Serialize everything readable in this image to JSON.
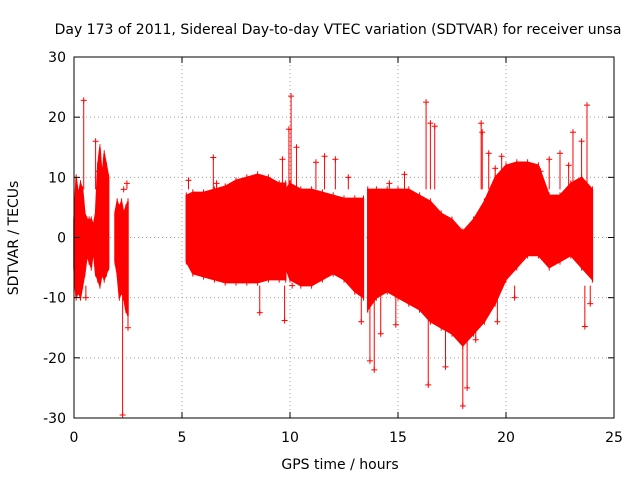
{
  "chart_data": {
    "type": "scatter",
    "title": "Day 173 of 2011, Sidereal Day-to-day VTEC variation (SDTVAR) for receiver unsa",
    "xlabel": "GPS time / hours",
    "ylabel": "SDTVAR / TECUs",
    "xlim": [
      0,
      25
    ],
    "ylim": [
      -30,
      30
    ],
    "xticks": [
      0,
      5,
      10,
      15,
      20,
      25
    ],
    "xtick_labels": [
      "0",
      "5",
      "10",
      "15",
      "20",
      "25"
    ],
    "yticks": [
      -30,
      -20,
      -10,
      0,
      10,
      20,
      30
    ],
    "ytick_labels": [
      "-30",
      "-20",
      "-10",
      "0",
      "10",
      "20",
      "30"
    ],
    "grid": true,
    "series_color": "#ff0000",
    "marker": "plus",
    "bands": [
      {
        "x": [
          0.0,
          0.05,
          0.1,
          0.2,
          0.3,
          0.4,
          0.5,
          0.6,
          0.7,
          0.8,
          0.9,
          1.0,
          1.1,
          1.2,
          1.3,
          1.4,
          1.5,
          1.6
        ],
        "ymin": [
          -5,
          -8,
          -10,
          -9,
          -10,
          -8,
          -6,
          -3,
          -4,
          -5,
          -2,
          -6,
          -7,
          -8,
          -6,
          -7,
          -6,
          -5
        ],
        "ymax": [
          3,
          6,
          10,
          7,
          9,
          8,
          4,
          3,
          3,
          3,
          2,
          4,
          12,
          15,
          10,
          14,
          12,
          10
        ]
      },
      {
        "x": [
          1.9,
          2.0,
          2.1,
          2.2,
          2.3,
          2.4,
          2.5
        ],
        "ymin": [
          -4,
          -6,
          -10,
          -9,
          -10,
          -12,
          -13
        ],
        "ymax": [
          4,
          6,
          5,
          6,
          4,
          5,
          6
        ]
      },
      {
        "x": [
          5.2,
          5.5,
          6.0,
          6.5,
          7.0,
          7.5,
          8.0,
          8.5,
          9.0,
          9.5,
          9.8
        ],
        "ymin": [
          -4,
          -6,
          -6.5,
          -7,
          -7.5,
          -7.5,
          -7.5,
          -7.5,
          -7,
          -7,
          -7
        ],
        "ymax": [
          7,
          7.5,
          7.5,
          8,
          8.5,
          9.5,
          10,
          10.5,
          10,
          9,
          9
        ]
      },
      {
        "x": [
          9.8,
          10.0,
          10.5,
          11.0,
          11.5,
          12.0,
          12.5,
          13.0,
          13.4
        ],
        "ymin": [
          -5,
          -7,
          -8,
          -8,
          -7,
          -6,
          -7,
          -9,
          -10
        ],
        "ymax": [
          8,
          9,
          8,
          8,
          7.5,
          7,
          6.5,
          6.5,
          6.5
        ]
      },
      {
        "x": [
          13.6,
          14.0,
          14.5,
          15.0,
          15.5,
          16.0,
          16.5,
          17.0,
          17.5,
          18.0,
          18.5,
          19.0,
          19.5,
          20.0,
          20.5,
          21.0,
          21.5,
          22.0,
          22.5,
          23.0,
          23.5,
          24.0
        ],
        "ymin": [
          -12,
          -10,
          -9,
          -10,
          -11,
          -12,
          -14,
          -15,
          -16,
          -18,
          -16,
          -14,
          -11,
          -7,
          -5,
          -3,
          -3,
          -5,
          -4,
          -3,
          -5,
          -7
        ],
        "ymax": [
          8,
          8,
          8,
          8,
          8,
          7,
          6,
          4,
          3,
          1,
          3,
          6,
          10,
          12,
          12.5,
          12.5,
          12,
          7,
          7,
          9,
          10,
          8
        ]
      }
    ],
    "outliers": [
      {
        "x": 0.45,
        "y": 22.8
      },
      {
        "x": 2.25,
        "y": -29.5
      },
      {
        "x": 2.5,
        "y": -15
      },
      {
        "x": 0.55,
        "y": -10
      },
      {
        "x": 1.0,
        "y": 16
      },
      {
        "x": 1.15,
        "y": 11
      },
      {
        "x": 2.3,
        "y": 8
      },
      {
        "x": 2.45,
        "y": 9
      },
      {
        "x": 5.3,
        "y": 9.5
      },
      {
        "x": 6.45,
        "y": 13.3
      },
      {
        "x": 6.6,
        "y": 9
      },
      {
        "x": 8.6,
        "y": -12.5
      },
      {
        "x": 9.75,
        "y": -13.8
      },
      {
        "x": 9.65,
        "y": 13
      },
      {
        "x": 10.05,
        "y": 23.5
      },
      {
        "x": 9.95,
        "y": 18
      },
      {
        "x": 10.3,
        "y": 15
      },
      {
        "x": 10.1,
        "y": -8
      },
      {
        "x": 11.2,
        "y": 12.5
      },
      {
        "x": 11.6,
        "y": 13.5
      },
      {
        "x": 12.1,
        "y": 13
      },
      {
        "x": 12.7,
        "y": 10
      },
      {
        "x": 13.3,
        "y": -14
      },
      {
        "x": 13.7,
        "y": -20.5
      },
      {
        "x": 13.9,
        "y": -22
      },
      {
        "x": 14.2,
        "y": -16
      },
      {
        "x": 14.6,
        "y": 9
      },
      {
        "x": 14.9,
        "y": -14.5
      },
      {
        "x": 15.3,
        "y": 10.5
      },
      {
        "x": 16.3,
        "y": 22.5
      },
      {
        "x": 16.5,
        "y": 19
      },
      {
        "x": 16.7,
        "y": 18.5
      },
      {
        "x": 16.4,
        "y": -24.5
      },
      {
        "x": 17.2,
        "y": -21.5
      },
      {
        "x": 17.6,
        "y": -14
      },
      {
        "x": 18.0,
        "y": -28
      },
      {
        "x": 18.2,
        "y": -25
      },
      {
        "x": 18.6,
        "y": -17
      },
      {
        "x": 18.85,
        "y": 19
      },
      {
        "x": 18.9,
        "y": 17.5
      },
      {
        "x": 19.2,
        "y": 14
      },
      {
        "x": 19.5,
        "y": 11.5
      },
      {
        "x": 19.8,
        "y": 13.5
      },
      {
        "x": 19.6,
        "y": -14
      },
      {
        "x": 20.4,
        "y": -10
      },
      {
        "x": 21.6,
        "y": 11
      },
      {
        "x": 22.0,
        "y": 13
      },
      {
        "x": 22.5,
        "y": 14
      },
      {
        "x": 22.9,
        "y": 12
      },
      {
        "x": 23.1,
        "y": 17.5
      },
      {
        "x": 23.5,
        "y": 16
      },
      {
        "x": 23.75,
        "y": 22
      },
      {
        "x": 23.65,
        "y": -14.8
      },
      {
        "x": 23.9,
        "y": -11
      }
    ]
  }
}
